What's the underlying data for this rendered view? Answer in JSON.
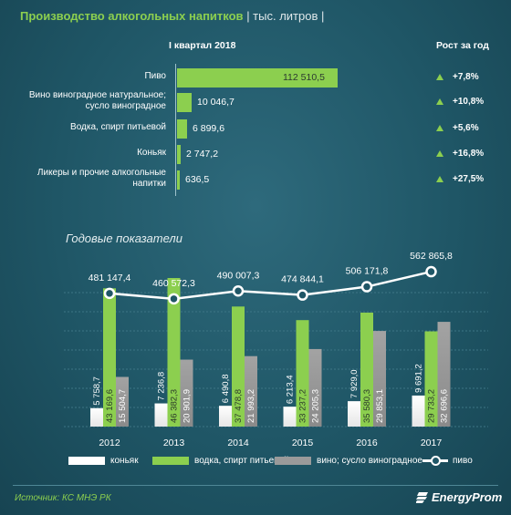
{
  "header": {
    "title": "Производство алкогольных напитков",
    "unit": "| тыс. литров |"
  },
  "quarter_table": {
    "period_label": "I квартал 2018",
    "growth_label": "Рост за год",
    "rows": [
      {
        "label": "Пиво",
        "value": "112 510,5",
        "growth": "+7,8%"
      },
      {
        "label": "Вино виноградное натуральное; сусло виноградное",
        "value": "10 046,7",
        "growth": "+10,8%"
      },
      {
        "label": "Водка, спирт питьевой",
        "value": "6 899,6",
        "growth": "+5,6%"
      },
      {
        "label": "Коньяк",
        "value": "2 747,2",
        "growth": "+16,8%"
      },
      {
        "label": "Ликеры и прочие алкогольные напитки",
        "value": "636,5",
        "growth": "+27,5%"
      }
    ]
  },
  "annual": {
    "subtitle": "Годовые показатели"
  },
  "legend": {
    "cognac": "коньяк",
    "vodka": "водка, спирт питьевой",
    "wine": "вино; сусло виноградное",
    "beer": "пиво"
  },
  "footer": {
    "source": "Источник: КС МНЭ РК",
    "brand": "EnergyProm"
  },
  "colors": {
    "green": "#8ccf4f",
    "white": "#ffffff",
    "gray": "#9a9a9a",
    "background": "#1f5666"
  },
  "chart_data": [
    {
      "type": "bar",
      "orientation": "horizontal",
      "title": "Производство алкогольных напитков",
      "categories": [
        "Пиво",
        "Вино виноградное натуральное; сусло виноградное",
        "Водка, спирт питьевой",
        "Коньяк",
        "Ликеры и прочие алкогольные напитки"
      ],
      "series": [
        {
          "name": "I квартал 2018",
          "values": [
            112510.5,
            10046.7,
            6899.6,
            2747.2,
            636.5
          ]
        },
        {
          "name": "Рост за год",
          "values": [
            7.8,
            10.8,
            5.6,
            16.8,
            27.5
          ]
        }
      ]
    },
    {
      "type": "bar",
      "title": "Годовые показатели",
      "categories": [
        "2012",
        "2013",
        "2014",
        "2015",
        "2016",
        "2017"
      ],
      "series": [
        {
          "name": "коньяк",
          "values": [
            5758.7,
            7236.8,
            6490.8,
            6213.4,
            7929.0,
            9691.2
          ],
          "labels": [
            "5 758,7",
            "7 236,8",
            "6 490,8",
            "6 213,4",
            "7 929,0",
            "9 691,2"
          ]
        },
        {
          "name": "водка, спирт питьевой",
          "values": [
            43169.6,
            46382.3,
            37478.8,
            33237.2,
            35580.3,
            29733.2
          ],
          "labels": [
            "43 169,6",
            "46 382,3",
            "37 478,8",
            "33 237,2",
            "35 580,3",
            "29 733,2"
          ]
        },
        {
          "name": "вино; сусло виноградное",
          "values": [
            15504.7,
            20901.9,
            21993.2,
            24205.3,
            29853.1,
            32696.6
          ],
          "labels": [
            "15 504,7",
            "20 901,9",
            "21 993,2",
            "24 205,3",
            "29 853,1",
            "32 696,6"
          ]
        },
        {
          "name": "пиво",
          "type": "line",
          "values": [
            481147.4,
            460572.3,
            490007.3,
            474844.1,
            506171.8,
            562865.8
          ],
          "labels": [
            "481 147,4",
            "460 572,3",
            "490 007,3",
            "474 844,1",
            "506 171,8",
            "562 865,8"
          ]
        }
      ],
      "legend_position": "bottom",
      "grid": true
    }
  ]
}
